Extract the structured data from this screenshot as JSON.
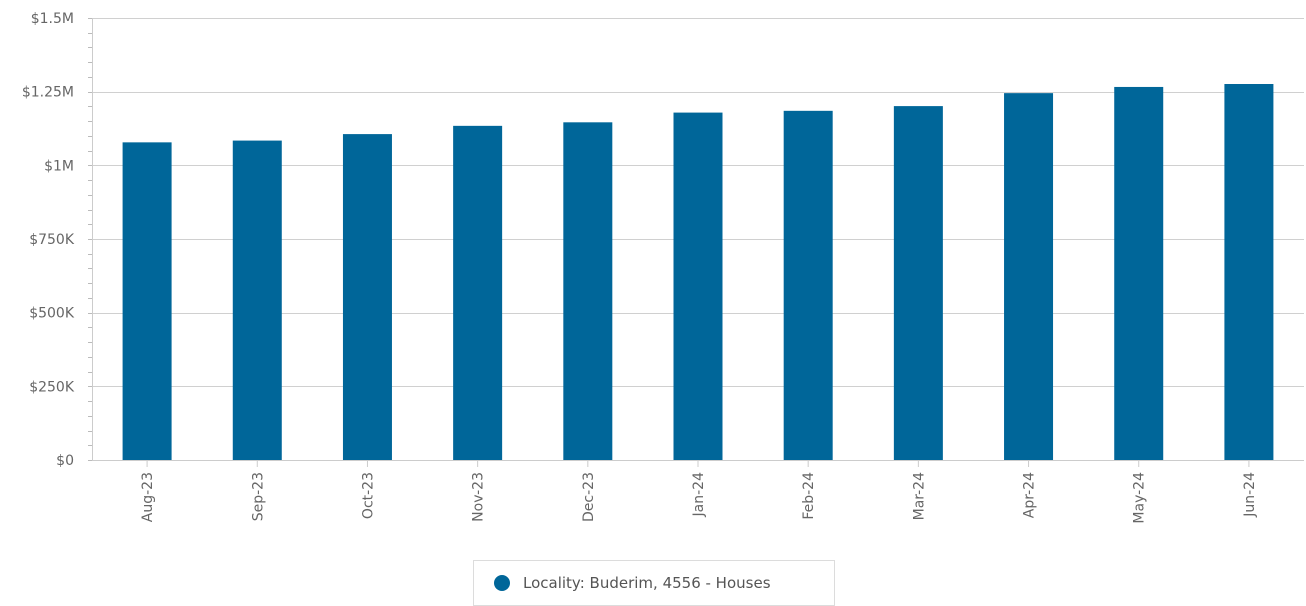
{
  "chart_data": {
    "type": "bar",
    "categories": [
      "Aug-23",
      "Sep-23",
      "Oct-23",
      "Nov-23",
      "Dec-23",
      "Jan-24",
      "Feb-24",
      "Mar-24",
      "Apr-24",
      "May-24",
      "Jun-24"
    ],
    "series": [
      {
        "name": "Locality: Buderim, 4556 - Houses",
        "color": "#006699",
        "values": [
          1078000,
          1084000,
          1106000,
          1134000,
          1146000,
          1179000,
          1185000,
          1201000,
          1245000,
          1266000,
          1276000
        ]
      }
    ],
    "ylim": [
      0,
      1500000
    ],
    "yticks": [
      0,
      250000,
      500000,
      750000,
      1000000,
      1250000,
      1500000
    ],
    "ytick_labels": [
      "$0",
      "$250K",
      "$500K",
      "$750K",
      "$1M",
      "$1.25M",
      "$1.5M"
    ],
    "grid": true,
    "legend_position": "bottom-center"
  }
}
